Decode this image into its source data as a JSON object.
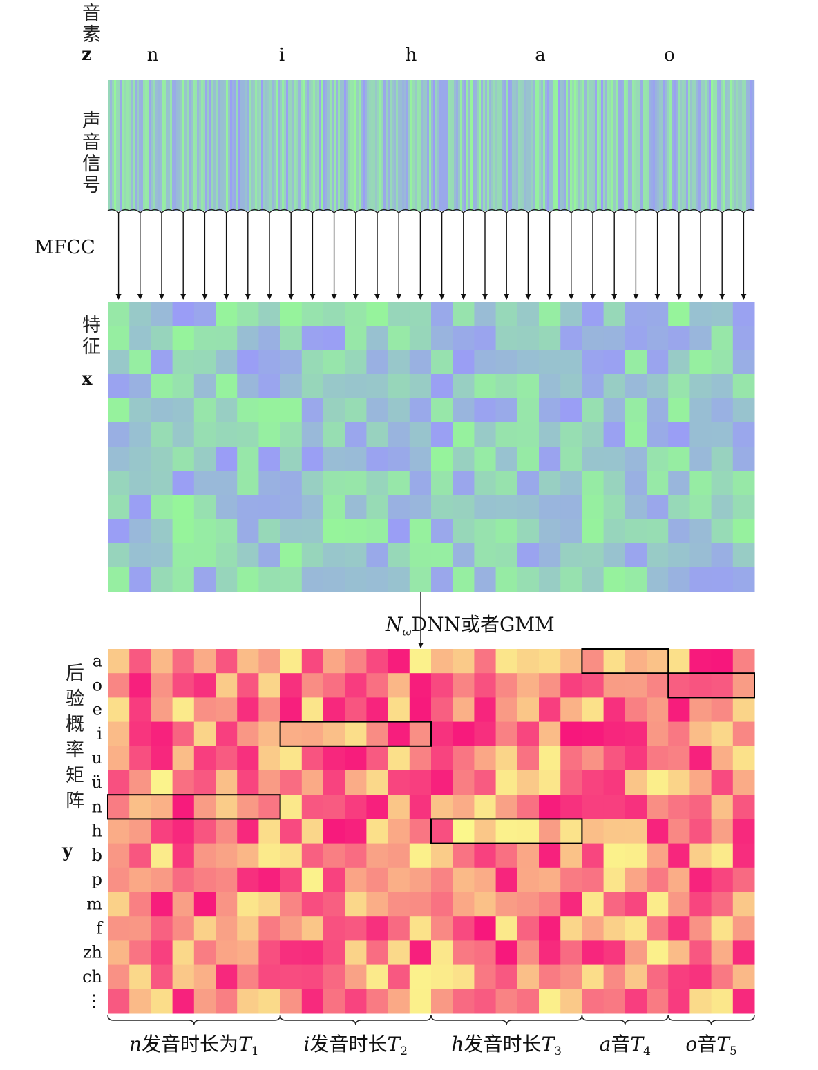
{
  "phoneme_axis": {
    "label": "音素",
    "symbol": "z",
    "phonemes": [
      "n",
      "i",
      "h",
      "a",
      "o"
    ]
  },
  "signal": {
    "label": "声音信号",
    "arrow_label": "MFCC"
  },
  "features": {
    "label": "特征",
    "symbol": "x",
    "rows": 12,
    "cols": 30
  },
  "model": {
    "symbol": "N",
    "subscript": "ω",
    "label": "DNN或者GMM"
  },
  "posterior": {
    "label": "后验概率矩阵",
    "symbol": "y",
    "row_labels": [
      "a",
      "o",
      "e",
      "i",
      "u",
      "ü",
      "n",
      "h",
      "b",
      "p",
      "m",
      "f",
      "zh",
      "ch",
      "⋮"
    ],
    "cols": 30,
    "highlights": [
      {
        "row": "n",
        "from_col": 0,
        "to_col": 7
      },
      {
        "row": "i",
        "from_col": 8,
        "to_col": 14
      },
      {
        "row": "h",
        "from_col": 15,
        "to_col": 21
      },
      {
        "row": "a",
        "from_col": 22,
        "to_col": 25
      },
      {
        "row": "o",
        "from_col": 26,
        "to_col": 29
      }
    ]
  },
  "durations": [
    {
      "var": "n",
      "text": "发音时长为",
      "T": "T",
      "sub": "1"
    },
    {
      "var": "i",
      "text": "发音时长",
      "T": "T",
      "sub": "2"
    },
    {
      "var": "h",
      "text": "发音时长",
      "T": "T",
      "sub": "3"
    },
    {
      "var": "a",
      "text": "音",
      "T": "T",
      "sub": "4"
    },
    {
      "var": "o",
      "text": "音",
      "T": "T",
      "sub": "5"
    }
  ],
  "colors": {
    "feature_green": "#96f59a",
    "feature_blue": "#9a9df6",
    "post_magenta": "#f7177c",
    "post_yellow": "#fbf88c"
  }
}
